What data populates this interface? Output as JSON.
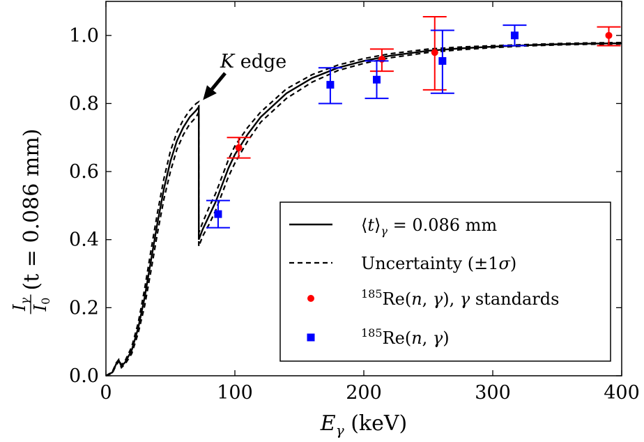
{
  "chart_data": {
    "type": "scatter",
    "xlabel": "E_γ (keV)",
    "xlabel_main": "E",
    "xlabel_sub": "γ",
    "xlabel_unit": " (keV)",
    "ylabel_frac_num": "I",
    "ylabel_frac_num_sub": "γ",
    "ylabel_frac_den": "I",
    "ylabel_frac_den_sub": "0",
    "ylabel_rest": " (t = 0.086 mm)",
    "xlim": [
      0,
      400
    ],
    "ylim": [
      0,
      1.1
    ],
    "xticks": [
      "0",
      "100",
      "200",
      "300",
      "400"
    ],
    "yticks": [
      "0.0",
      "0.2",
      "0.4",
      "0.6",
      "0.8",
      "1.0"
    ],
    "grid": false,
    "legend_position": "bottom-right",
    "annotation": {
      "text_italic": "K",
      "text": " edge",
      "points_to": [
        72,
        0.8
      ]
    },
    "series": [
      {
        "name": "⟨t⟩_γ = 0.086 mm",
        "legend_parts": {
          "open": "⟨",
          "var": "t",
          "close": "⟩",
          "sub": "γ",
          "rest": " = 0.086 mm"
        },
        "style": "solid",
        "color": "#000000",
        "x": [
          0,
          5,
          8,
          10,
          12,
          15,
          20,
          25,
          30,
          35,
          40,
          45,
          50,
          55,
          60,
          65,
          70,
          72,
          72,
          75,
          80,
          85,
          90,
          95,
          100,
          110,
          120,
          140,
          160,
          180,
          200,
          220,
          250,
          275,
          300,
          325,
          350,
          375,
          400
        ],
        "y": [
          0.0,
          0.01,
          0.035,
          0.045,
          0.028,
          0.04,
          0.075,
          0.14,
          0.23,
          0.34,
          0.45,
          0.55,
          0.63,
          0.69,
          0.73,
          0.76,
          0.78,
          0.79,
          0.4,
          0.43,
          0.47,
          0.51,
          0.56,
          0.61,
          0.65,
          0.71,
          0.76,
          0.83,
          0.875,
          0.905,
          0.925,
          0.94,
          0.955,
          0.962,
          0.967,
          0.971,
          0.974,
          0.976,
          0.977
        ]
      },
      {
        "name": "Uncertainty (±1σ)",
        "legend_parts": {
          "text": "Uncertainty (±1",
          "sigma": "σ",
          "close": ")"
        },
        "style": "dashed",
        "color": "#000000",
        "band": true,
        "x": [
          0,
          5,
          8,
          10,
          12,
          15,
          20,
          25,
          30,
          35,
          40,
          45,
          50,
          55,
          60,
          65,
          70,
          72,
          72,
          75,
          80,
          85,
          90,
          95,
          100,
          110,
          120,
          140,
          160,
          180,
          200,
          220,
          250,
          275,
          300,
          325,
          350,
          375,
          400
        ],
        "y_upper": [
          0.0,
          0.012,
          0.038,
          0.048,
          0.032,
          0.045,
          0.085,
          0.155,
          0.255,
          0.37,
          0.48,
          0.58,
          0.66,
          0.715,
          0.752,
          0.78,
          0.8,
          0.805,
          0.42,
          0.45,
          0.495,
          0.535,
          0.585,
          0.635,
          0.675,
          0.73,
          0.775,
          0.843,
          0.885,
          0.913,
          0.932,
          0.946,
          0.96,
          0.966,
          0.97,
          0.973,
          0.976,
          0.978,
          0.979
        ],
        "y_lower": [
          0.0,
          0.008,
          0.032,
          0.042,
          0.024,
          0.035,
          0.065,
          0.125,
          0.205,
          0.31,
          0.42,
          0.52,
          0.6,
          0.665,
          0.708,
          0.74,
          0.76,
          0.775,
          0.38,
          0.41,
          0.445,
          0.485,
          0.535,
          0.585,
          0.625,
          0.69,
          0.745,
          0.815,
          0.863,
          0.897,
          0.918,
          0.934,
          0.95,
          0.958,
          0.964,
          0.969,
          0.972,
          0.974,
          0.975
        ]
      },
      {
        "name": "185Re(n, γ), γ standards",
        "legend_parts": {
          "sup": "185",
          "text": "Re(",
          "n": "n",
          "mid": ", ",
          "g1": "γ",
          "close": "), ",
          "g2": "γ",
          "rest": " standards"
        },
        "style": "marker-circle",
        "color": "#ff0000",
        "points": [
          {
            "x": 103,
            "y": 0.67,
            "err_low": 0.03,
            "err_high": 0.03
          },
          {
            "x": 214,
            "y": 0.93,
            "err_low": 0.035,
            "err_high": 0.03
          },
          {
            "x": 255,
            "y": 0.95,
            "err_low": 0.11,
            "err_high": 0.105
          },
          {
            "x": 390,
            "y": 1.0,
            "err_low": 0.03,
            "err_high": 0.025
          }
        ]
      },
      {
        "name": "185Re(n, γ)",
        "legend_parts": {
          "sup": "185",
          "text": "Re(",
          "n": "n",
          "mid": ", ",
          "g1": "γ",
          "close": ")"
        },
        "style": "marker-square",
        "color": "#0000ff",
        "points": [
          {
            "x": 87,
            "y": 0.475,
            "err_low": 0.04,
            "err_high": 0.04
          },
          {
            "x": 174,
            "y": 0.855,
            "err_low": 0.055,
            "err_high": 0.05
          },
          {
            "x": 210,
            "y": 0.87,
            "err_low": 0.055,
            "err_high": 0.055
          },
          {
            "x": 261,
            "y": 0.925,
            "err_low": 0.095,
            "err_high": 0.09
          },
          {
            "x": 317,
            "y": 1.0,
            "err_low": 0.03,
            "err_high": 0.03
          }
        ]
      }
    ]
  }
}
